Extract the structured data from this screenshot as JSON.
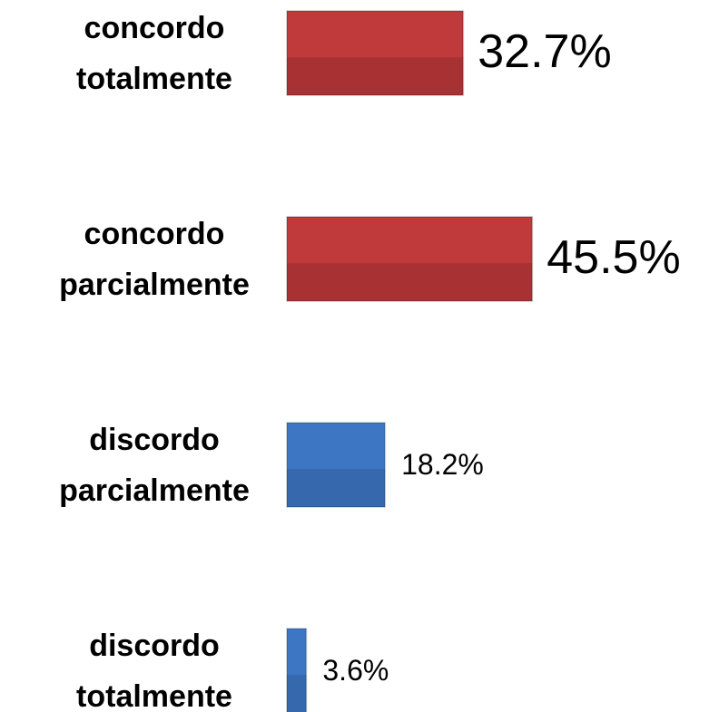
{
  "chart_data": {
    "type": "hbar",
    "categories": [
      "concordo totalmente",
      "concordo parcialmente",
      "discordo parcialmente",
      "discordo totalmente"
    ],
    "values": [
      32.7,
      45.5,
      18.2,
      3.6
    ],
    "value_labels": [
      "32.7%",
      "45.5%",
      "18.2%",
      "3.6%"
    ],
    "colors": [
      "#c0393b",
      "#c0393b",
      "#3d77c4",
      "#3d77c4"
    ]
  }
}
